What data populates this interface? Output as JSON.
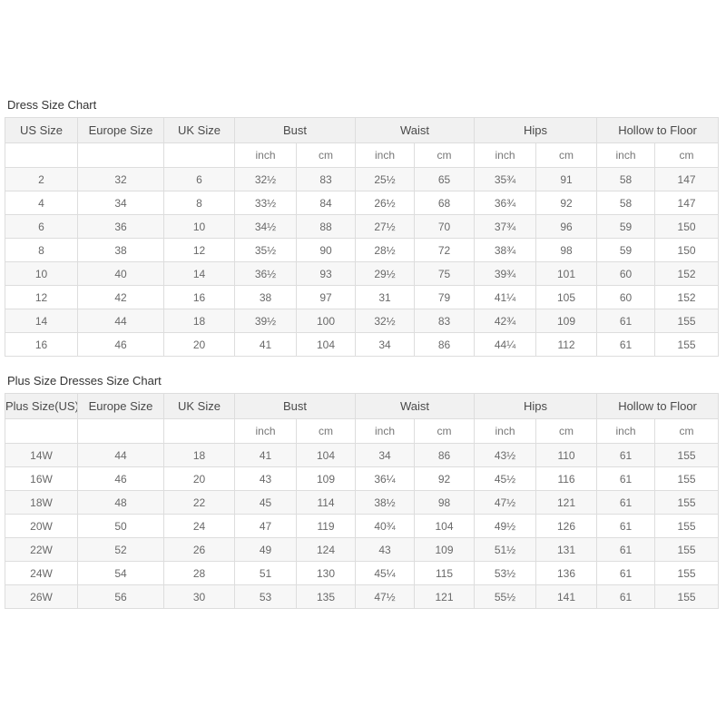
{
  "colors": {
    "page_background": "#ffffff",
    "header_background": "#f1f1f1",
    "stripe_background": "#f7f7f7",
    "border": "#dddddd",
    "title_text": "#333333",
    "header_text": "#4a4a4a",
    "cell_text": "#696969"
  },
  "tables": [
    {
      "title": "Dress Size Chart",
      "header_groups": [
        {
          "label": "US Size",
          "span": 1
        },
        {
          "label": "Europe Size",
          "span": 1
        },
        {
          "label": "UK Size",
          "span": 1
        },
        {
          "label": "Bust",
          "span": 2
        },
        {
          "label": "Waist",
          "span": 2
        },
        {
          "label": "Hips",
          "span": 2
        },
        {
          "label": "Hollow to Floor",
          "span": 2
        }
      ],
      "subheader": [
        "",
        "",
        "",
        "inch",
        "cm",
        "inch",
        "cm",
        "inch",
        "cm",
        "inch",
        "cm"
      ],
      "rows": [
        [
          "2",
          "32",
          "6",
          "32½",
          "83",
          "25½",
          "65",
          "35¾",
          "91",
          "58",
          "147"
        ],
        [
          "4",
          "34",
          "8",
          "33½",
          "84",
          "26½",
          "68",
          "36¾",
          "92",
          "58",
          "147"
        ],
        [
          "6",
          "36",
          "10",
          "34½",
          "88",
          "27½",
          "70",
          "37¾",
          "96",
          "59",
          "150"
        ],
        [
          "8",
          "38",
          "12",
          "35½",
          "90",
          "28½",
          "72",
          "38¾",
          "98",
          "59",
          "150"
        ],
        [
          "10",
          "40",
          "14",
          "36½",
          "93",
          "29½",
          "75",
          "39¾",
          "101",
          "60",
          "152"
        ],
        [
          "12",
          "42",
          "16",
          "38",
          "97",
          "31",
          "79",
          "41¼",
          "105",
          "60",
          "152"
        ],
        [
          "14",
          "44",
          "18",
          "39½",
          "100",
          "32½",
          "83",
          "42¾",
          "109",
          "61",
          "155"
        ],
        [
          "16",
          "46",
          "20",
          "41",
          "104",
          "34",
          "86",
          "44¼",
          "112",
          "61",
          "155"
        ]
      ]
    },
    {
      "title": "Plus Size Dresses Size Chart",
      "header_groups": [
        {
          "label": "Plus Size(US)",
          "span": 1
        },
        {
          "label": "Europe Size",
          "span": 1
        },
        {
          "label": "UK Size",
          "span": 1
        },
        {
          "label": "Bust",
          "span": 2
        },
        {
          "label": "Waist",
          "span": 2
        },
        {
          "label": "Hips",
          "span": 2
        },
        {
          "label": "Hollow to Floor",
          "span": 2
        }
      ],
      "subheader": [
        "",
        "",
        "",
        "inch",
        "cm",
        "inch",
        "cm",
        "inch",
        "cm",
        "inch",
        "cm"
      ],
      "rows": [
        [
          "14W",
          "44",
          "18",
          "41",
          "104",
          "34",
          "86",
          "43½",
          "110",
          "61",
          "155"
        ],
        [
          "16W",
          "46",
          "20",
          "43",
          "109",
          "36¼",
          "92",
          "45½",
          "116",
          "61",
          "155"
        ],
        [
          "18W",
          "48",
          "22",
          "45",
          "114",
          "38½",
          "98",
          "47½",
          "121",
          "61",
          "155"
        ],
        [
          "20W",
          "50",
          "24",
          "47",
          "119",
          "40¾",
          "104",
          "49½",
          "126",
          "61",
          "155"
        ],
        [
          "22W",
          "52",
          "26",
          "49",
          "124",
          "43",
          "109",
          "51½",
          "131",
          "61",
          "155"
        ],
        [
          "24W",
          "54",
          "28",
          "51",
          "130",
          "45¼",
          "115",
          "53½",
          "136",
          "61",
          "155"
        ],
        [
          "26W",
          "56",
          "30",
          "53",
          "135",
          "47½",
          "121",
          "55½",
          "141",
          "61",
          "155"
        ]
      ]
    }
  ]
}
